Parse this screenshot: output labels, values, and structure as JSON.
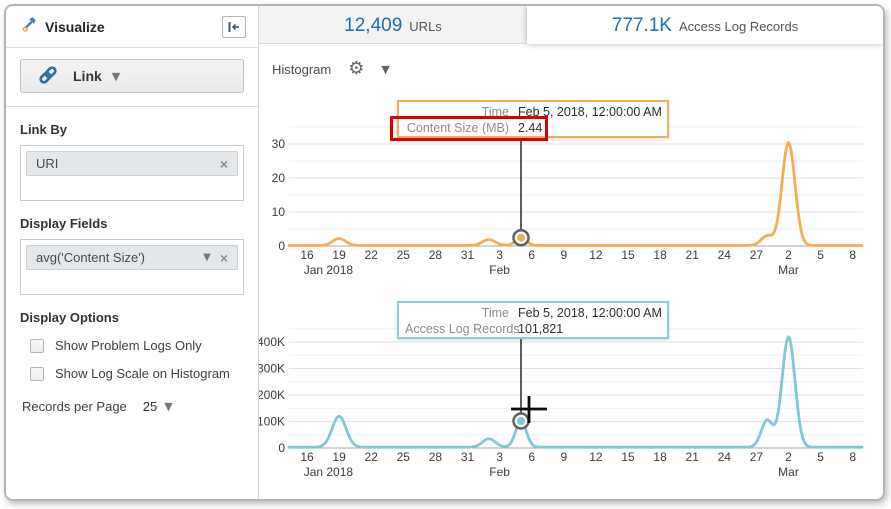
{
  "sidebar": {
    "title": "Visualize",
    "collapse_icon": "collapse-panel-left",
    "link_button": {
      "label": "Link"
    },
    "link_by": {
      "label": "Link By",
      "chip": "URI"
    },
    "display_fields": {
      "label": "Display Fields",
      "chip": "avg('Content Size')"
    },
    "display_options": {
      "label": "Display Options",
      "checkboxes": [
        {
          "label": "Show Problem Logs Only",
          "checked": false
        },
        {
          "label": "Show Log Scale on Histogram",
          "checked": false
        }
      ]
    },
    "records_per_page": {
      "label": "Records per Page",
      "value": "25"
    }
  },
  "tabs": [
    {
      "count": "12,409",
      "label": "URLs",
      "selected": false
    },
    {
      "count": "777.1K",
      "label": "Access Log Records",
      "selected": true
    }
  ],
  "toolbar": {
    "histogram_label": "Histogram"
  },
  "tooltips": {
    "content_size": {
      "border_color": "#f1ae57",
      "rows": [
        {
          "label": "Time",
          "value": "Feb 5, 2018, 12:00:00 AM"
        },
        {
          "label": "Content Size (MB)",
          "value": "2.44",
          "highlighted": true
        }
      ],
      "highlight_color": "#d80000"
    },
    "access_log": {
      "border_color": "#8fccda",
      "rows": [
        {
          "label": "Time",
          "value": "Feb 5, 2018, 12:00:00 AM"
        },
        {
          "label": "Access Log Records",
          "value": "101,821"
        }
      ]
    }
  },
  "colors": {
    "accent_blue": "#1d6fa8",
    "orange_line": "#f6ad52",
    "blue_line": "#7fc7d9",
    "marker_ring": "#5f5f5f",
    "annotation_red": "#d80000"
  },
  "chart_data": [
    {
      "type": "line",
      "series_label": "Content Size (MB)",
      "line_color": "#f6ad52",
      "x_tick_labels": [
        "16",
        "19",
        "22",
        "25",
        "28",
        "31",
        "3",
        "6",
        "9",
        "12",
        "15",
        "18",
        "21",
        "24",
        "27",
        "2",
        "5",
        "8"
      ],
      "x_tick_step_days": 3,
      "month_labels": [
        {
          "day": 2,
          "label": "Jan 2018"
        },
        {
          "day": 18,
          "label": "Feb"
        },
        {
          "day": 45,
          "label": "Mar"
        }
      ],
      "y_ticks": [
        {
          "v": 0,
          "label": "0"
        },
        {
          "v": 10,
          "label": "10"
        },
        {
          "v": 20,
          "label": "20"
        },
        {
          "v": 30,
          "label": "30"
        }
      ],
      "y_max": 35,
      "y_minor": 5,
      "y_major": 10,
      "baseline": 0.15,
      "peaks": [
        {
          "date": "Jan 19, 2018",
          "day": 3,
          "value": 2.2,
          "w": 0.6
        },
        {
          "date": "Feb 2, 2018",
          "day": 17,
          "value": 1.9,
          "w": 0.6
        },
        {
          "date": "Feb 5, 2018",
          "day": 20,
          "value": 2.44,
          "w": 0.5
        },
        {
          "date": "Feb 28, 2018",
          "day": 43,
          "value": 3.0,
          "w": 0.55
        },
        {
          "date": "Mar 2, 2018",
          "day": 45,
          "value": 30.5,
          "w": 0.6
        }
      ],
      "marker": {
        "date": "Feb 5, 2018, 12:00:00 AM",
        "day": 20,
        "value": 2.44
      }
    },
    {
      "type": "line",
      "series_label": "Access Log Records",
      "line_color": "#7fc7d9",
      "x_tick_labels": [
        "16",
        "19",
        "22",
        "25",
        "28",
        "31",
        "3",
        "6",
        "9",
        "12",
        "15",
        "18",
        "21",
        "24",
        "27",
        "2",
        "5",
        "8"
      ],
      "x_tick_step_days": 3,
      "month_labels": [
        {
          "day": 2,
          "label": "Jan 2018"
        },
        {
          "day": 18,
          "label": "Feb"
        },
        {
          "day": 45,
          "label": "Mar"
        }
      ],
      "y_ticks": [
        {
          "v": 0,
          "label": "0"
        },
        {
          "v": 100000,
          "label": "100K"
        },
        {
          "v": 200000,
          "label": "200K"
        },
        {
          "v": 300000,
          "label": "300K"
        },
        {
          "v": 400000,
          "label": "400K"
        }
      ],
      "y_max": 450000,
      "y_minor": 50000,
      "y_major": 100000,
      "baseline": 3000,
      "peaks": [
        {
          "date": "Jan 19, 2018",
          "day": 3,
          "value": 120000,
          "w": 0.65
        },
        {
          "date": "Feb 2, 2018",
          "day": 17,
          "value": 35000,
          "w": 0.6
        },
        {
          "date": "Feb 5, 2018",
          "day": 20,
          "value": 101821,
          "w": 0.5
        },
        {
          "date": "Feb 28, 2018",
          "day": 43,
          "value": 105000,
          "w": 0.55
        },
        {
          "date": "Mar 2, 2018",
          "day": 45,
          "value": 420000,
          "w": 0.6
        }
      ],
      "marker": {
        "date": "Feb 5, 2018, 12:00:00 AM",
        "day": 20,
        "value": 101821
      }
    }
  ]
}
